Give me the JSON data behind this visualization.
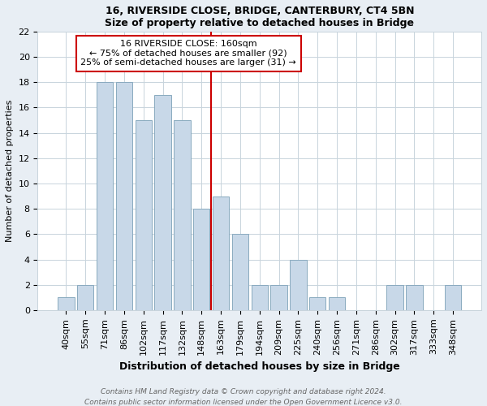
{
  "title1": "16, RIVERSIDE CLOSE, BRIDGE, CANTERBURY, CT4 5BN",
  "title2": "Size of property relative to detached houses in Bridge",
  "xlabel": "Distribution of detached houses by size in Bridge",
  "ylabel": "Number of detached properties",
  "categories": [
    "40sqm",
    "55sqm",
    "71sqm",
    "86sqm",
    "102sqm",
    "117sqm",
    "132sqm",
    "148sqm",
    "163sqm",
    "179sqm",
    "194sqm",
    "209sqm",
    "225sqm",
    "240sqm",
    "256sqm",
    "271sqm",
    "286sqm",
    "302sqm",
    "317sqm",
    "333sqm",
    "348sqm"
  ],
  "values": [
    1,
    2,
    18,
    18,
    15,
    17,
    15,
    8,
    9,
    6,
    2,
    2,
    4,
    1,
    1,
    0,
    0,
    2,
    2,
    0,
    2
  ],
  "bar_color": "#c8d8e8",
  "bar_edge_color": "#8aaabf",
  "vline_index": 8.5,
  "vline_color": "#cc0000",
  "annotation_line1": "16 RIVERSIDE CLOSE: 160sqm",
  "annotation_line2": "← 75% of detached houses are smaller (92)",
  "annotation_line3": "25% of semi-detached houses are larger (31) →",
  "annotation_box_color": "#ffffff",
  "annotation_box_edge_color": "#cc0000",
  "ylim": [
    0,
    22
  ],
  "yticks": [
    0,
    2,
    4,
    6,
    8,
    10,
    12,
    14,
    16,
    18,
    20,
    22
  ],
  "footer1": "Contains HM Land Registry data © Crown copyright and database right 2024.",
  "footer2": "Contains public sector information licensed under the Open Government Licence v3.0.",
  "bg_color": "#e8eef4",
  "plot_bg_color": "#ffffff",
  "grid_color": "#c8d4dc",
  "title_fontsize": 9,
  "xlabel_fontsize": 9,
  "ylabel_fontsize": 8,
  "tick_fontsize": 8,
  "annot_fontsize": 8,
  "footer_fontsize": 6.5
}
